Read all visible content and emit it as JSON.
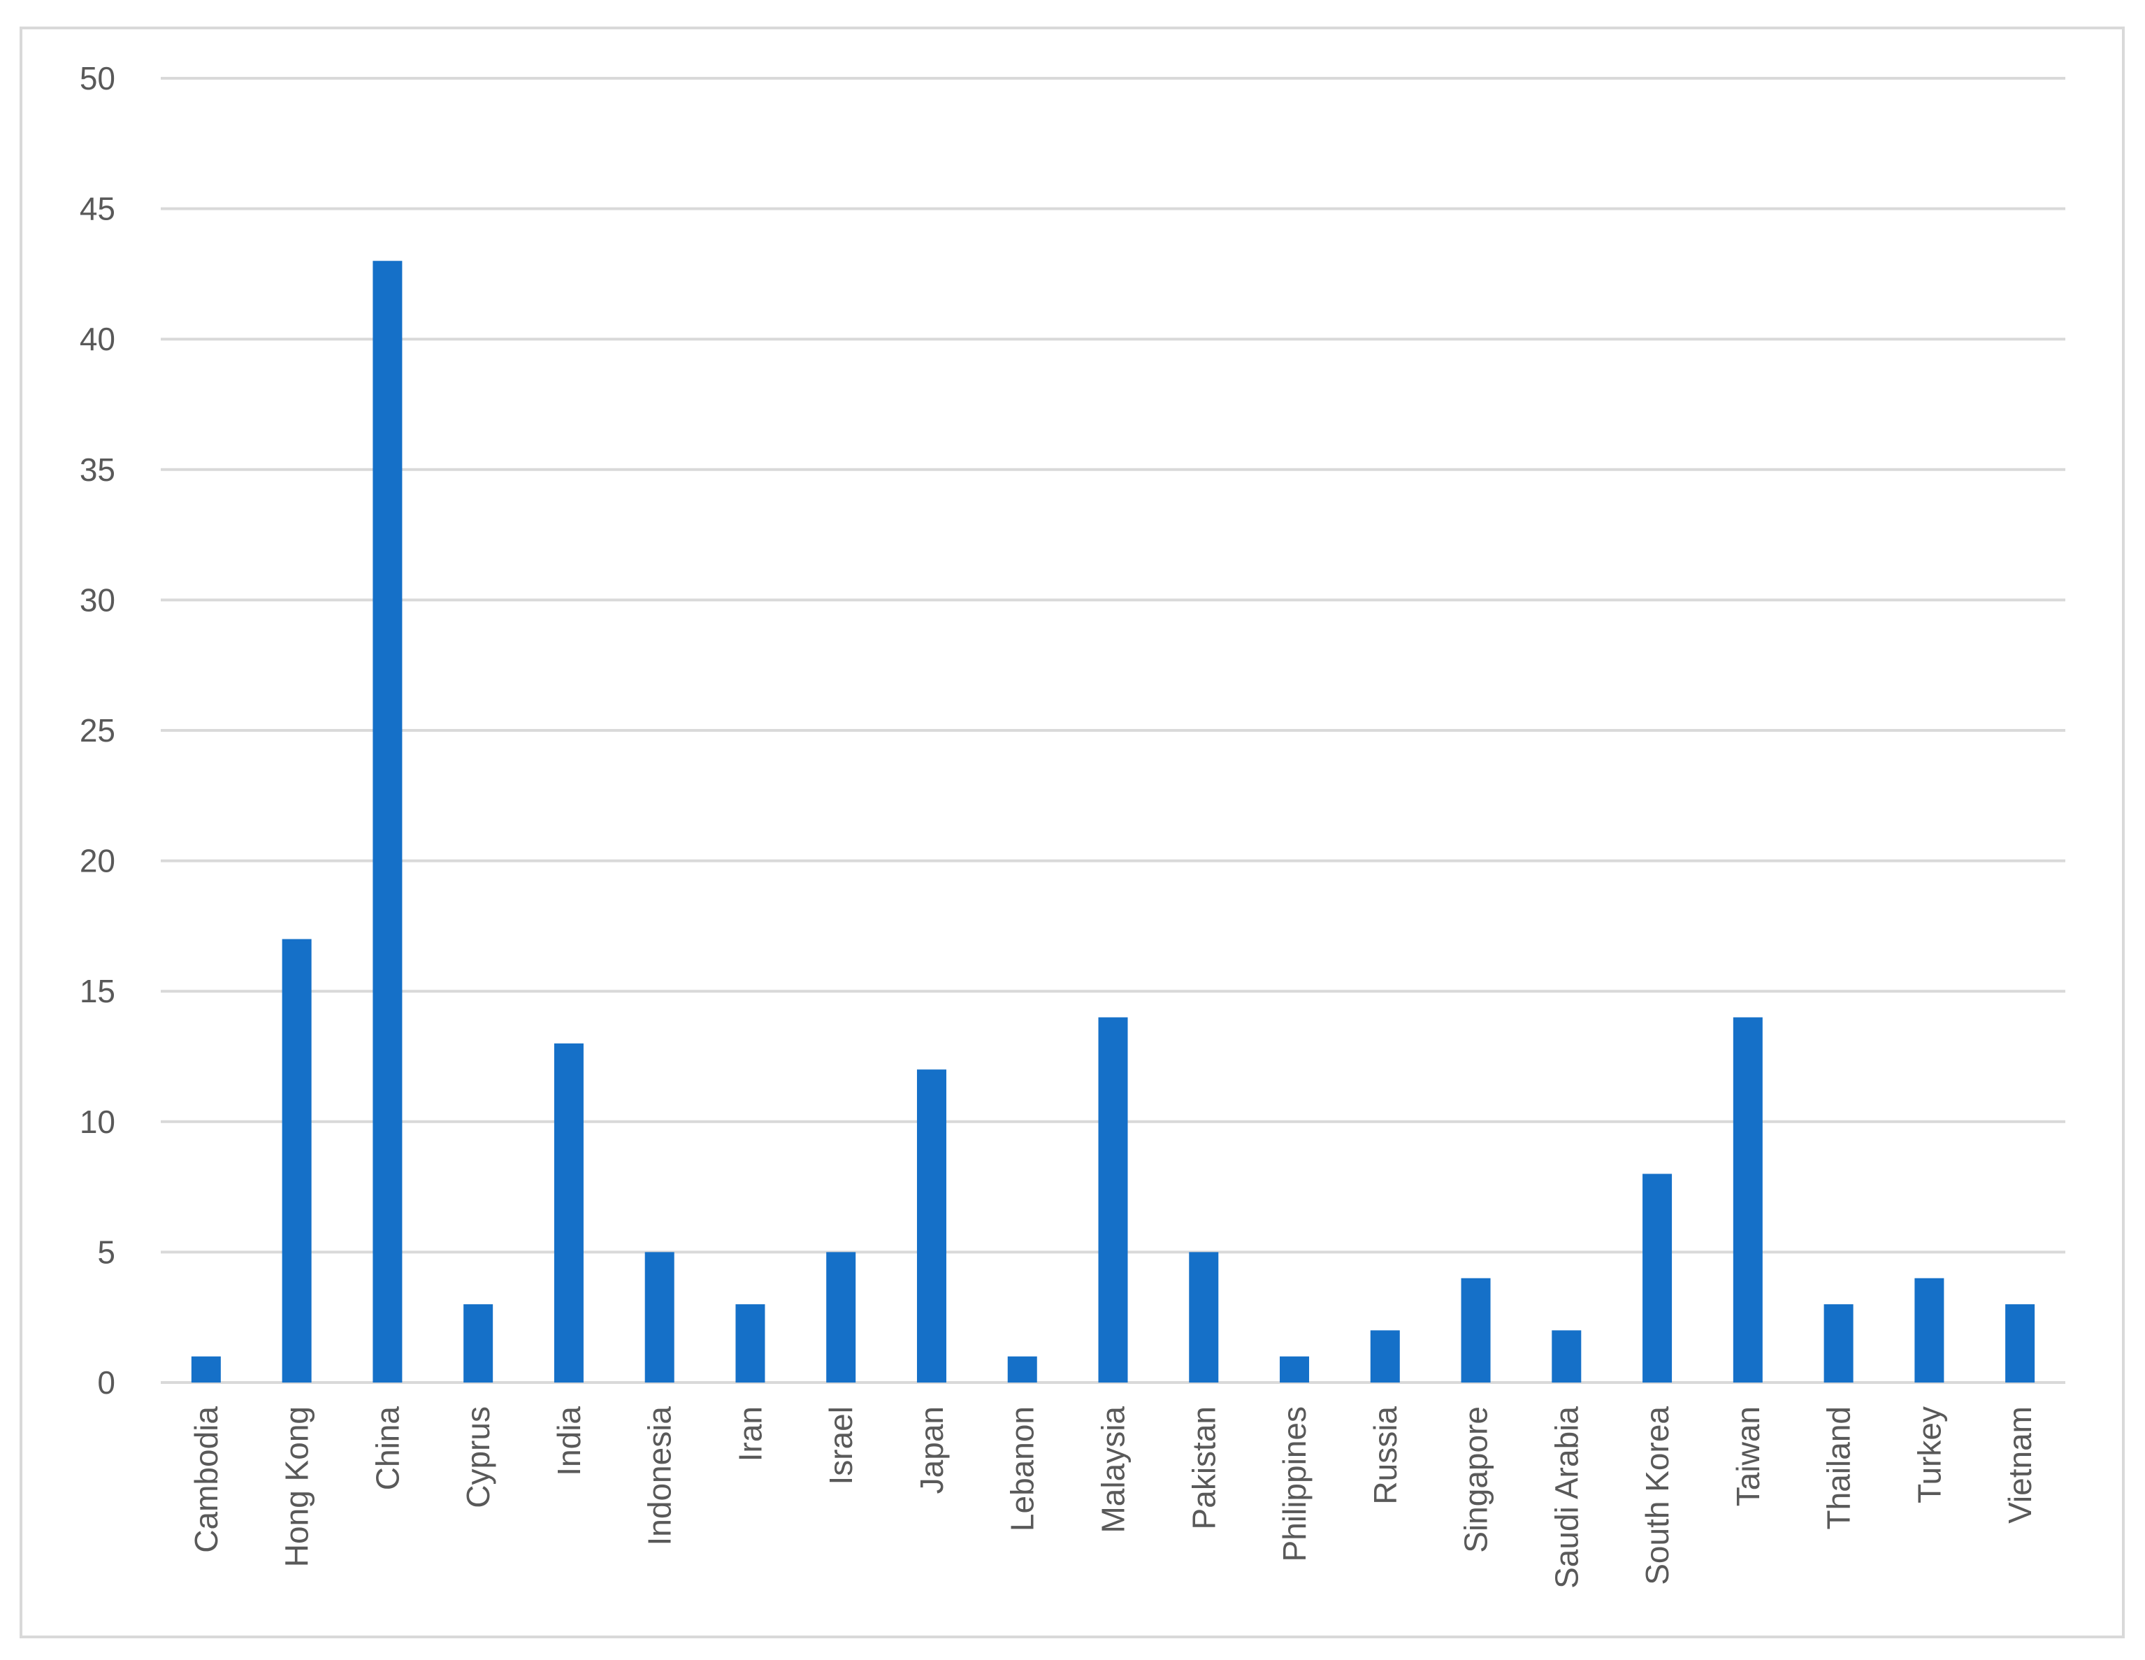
{
  "chart_data": {
    "type": "bar",
    "title": "",
    "xlabel": "",
    "ylabel": "",
    "ylim": [
      0,
      50
    ],
    "yticks": [
      0,
      5,
      10,
      15,
      20,
      25,
      30,
      35,
      40,
      45,
      50
    ],
    "grid": true,
    "legend": "none",
    "bar_color": "#1570C8",
    "gridline_color": "#d9d9d9",
    "categories": [
      "Cambodia",
      "Hong Kong",
      "China",
      "Cyprus",
      "India",
      "Indonesia",
      "Iran",
      "Israel",
      "Japan",
      "Lebanon",
      "Malaysia",
      "Pakistan",
      "Philippines",
      "Russia",
      "Singapore",
      "Saudi Arabia",
      "South Korea",
      "Taiwan",
      "Thailand",
      "Turkey",
      "Vietnam"
    ],
    "values": [
      1,
      17,
      43,
      3,
      13,
      5,
      3,
      5,
      12,
      1,
      14,
      5,
      1,
      2,
      4,
      2,
      8,
      14,
      3,
      4,
      3
    ]
  }
}
